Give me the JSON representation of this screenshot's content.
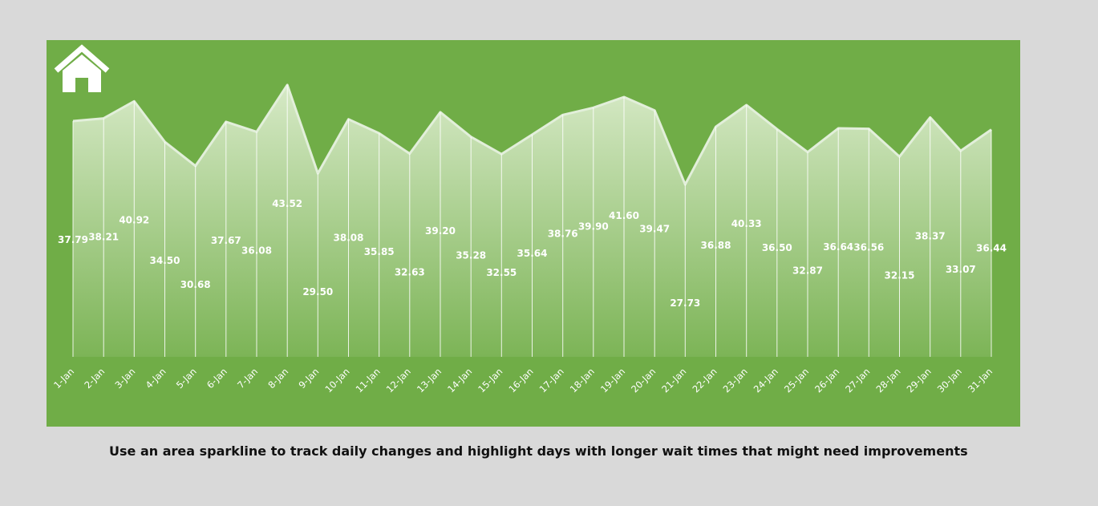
{
  "caption": "Use an area sparkline to track daily changes and highlight days with longer wait times that might need improvements",
  "icons": {
    "home": "home-icon"
  },
  "colors": {
    "page_background": "#d9d9d9",
    "chart_background": "#70ad47",
    "area_fill_top": "#d6e9c6",
    "area_line": "#e2efda",
    "labels": "#ffffff"
  },
  "chart_data": {
    "type": "area",
    "title": "",
    "xlabel": "",
    "ylabel": "",
    "categories": [
      "1-Jan",
      "2-Jan",
      "3-Jan",
      "4-Jan",
      "5-Jan",
      "6-Jan",
      "7-Jan",
      "8-Jan",
      "9-Jan",
      "10-Jan",
      "11-Jan",
      "12-Jan",
      "13-Jan",
      "14-Jan",
      "15-Jan",
      "16-Jan",
      "17-Jan",
      "18-Jan",
      "19-Jan",
      "20-Jan",
      "21-Jan",
      "22-Jan",
      "23-Jan",
      "24-Jan",
      "25-Jan",
      "26-Jan",
      "27-Jan",
      "28-Jan",
      "29-Jan",
      "30-Jan",
      "31-Jan"
    ],
    "values": [
      37.79,
      38.21,
      40.92,
      34.5,
      30.68,
      37.67,
      36.08,
      43.52,
      29.5,
      38.08,
      35.85,
      32.63,
      39.2,
      35.28,
      32.55,
      35.64,
      38.76,
      39.9,
      41.6,
      39.47,
      27.73,
      36.88,
      40.33,
      36.5,
      32.87,
      36.64,
      36.56,
      32.15,
      38.37,
      33.07,
      36.44
    ],
    "value_labels": [
      "37.79",
      "38.21",
      "40.92",
      "34.50",
      "30.68",
      "37.67",
      "36.08",
      "43.52",
      "29.50",
      "38.08",
      "35.85",
      "32.63",
      "39.20",
      "35.28",
      "32.55",
      "35.64",
      "38.76",
      "39.90",
      "41.60",
      "39.47",
      "27.73",
      "36.88",
      "40.33",
      "36.50",
      "32.87",
      "36.64",
      "36.56",
      "32.15",
      "38.37",
      "33.07",
      "36.44"
    ],
    "ylim": [
      0,
      46
    ],
    "grid": false,
    "legend": "none"
  }
}
